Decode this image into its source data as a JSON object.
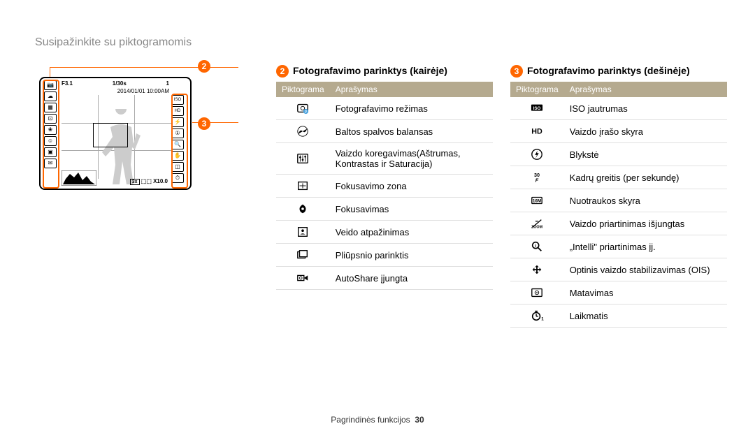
{
  "page_title": "Susipažinkite su piktogramomis",
  "callout2": "2",
  "callout3": "3",
  "section2_title": "Fotografavimo parinktys (kairėje)",
  "section3_title": "Fotografavimo parinktys (dešinėje)",
  "col_icon": "Piktograma",
  "col_desc": "Aprašymas",
  "cam": {
    "aperture": "F3.1",
    "shutter": "1/30s",
    "count": "1",
    "mem": "⬚",
    "date": "2014/01/01  10:00AM",
    "zoom": "X10.0",
    "marker": "3x"
  },
  "left_rows": [
    {
      "icon": "mode",
      "desc": "Fotografavimo režimas"
    },
    {
      "icon": "wb",
      "desc": "Baltos spalvos balansas"
    },
    {
      "icon": "adjust",
      "desc": "Vaizdo koregavimas(Aštrumas, Kontrastas ir Saturacija)"
    },
    {
      "icon": "focusarea",
      "desc": "Fokusavimo zona"
    },
    {
      "icon": "focus",
      "desc": "Fokusavimas"
    },
    {
      "icon": "face",
      "desc": "Veido atpažinimas"
    },
    {
      "icon": "burst",
      "desc": "Pliūpsnio parinktis"
    },
    {
      "icon": "autoshare",
      "desc": "AutoShare įjungta"
    }
  ],
  "right_rows": [
    {
      "icon": "iso",
      "desc": "ISO jautrumas"
    },
    {
      "icon": "hd",
      "desc": "Vaizdo įrašo skyra"
    },
    {
      "icon": "flash",
      "desc": "Blykstė"
    },
    {
      "icon": "fps",
      "desc": "Kadrų greitis (per sekundę)"
    },
    {
      "icon": "res",
      "desc": "Nuotraukos skyra"
    },
    {
      "icon": "zoom",
      "desc": "Vaizdo priartinimas išjungtas"
    },
    {
      "icon": "intelli",
      "desc": "„Intelli\" priartinimas įj."
    },
    {
      "icon": "ois",
      "desc": "Optinis vaizdo stabilizavimas (OIS)"
    },
    {
      "icon": "meter",
      "desc": "Matavimas"
    },
    {
      "icon": "timer",
      "desc": "Laikmatis"
    }
  ],
  "footer_section": "Pagrindinės funkcijos",
  "footer_page": "30"
}
